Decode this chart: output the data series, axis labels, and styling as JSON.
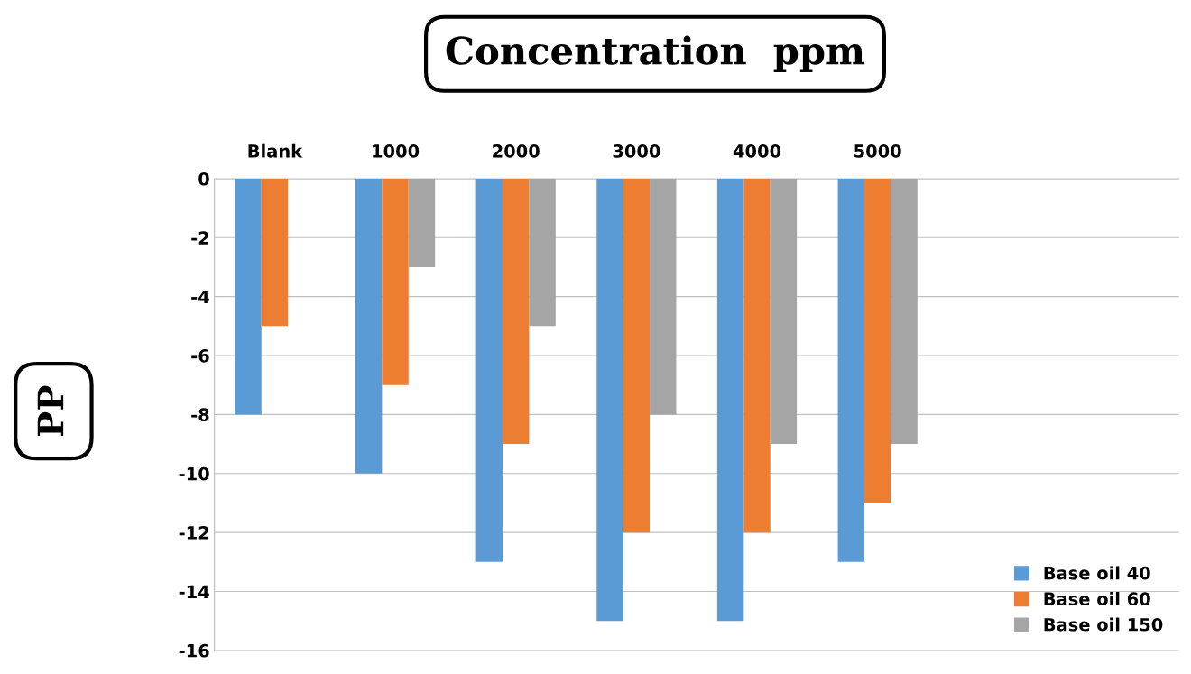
{
  "chart_data": {
    "type": "bar",
    "title": "Concentration  ppm",
    "ylabel": "PP",
    "categories": [
      "Blank",
      "1000",
      "2000",
      "3000",
      "4000",
      "5000",
      null,
      null
    ],
    "series": [
      {
        "name": "Base oil 40",
        "color": "#5b9bd5",
        "values": [
          -8,
          -10,
          -13,
          -15,
          -15,
          -13,
          null,
          null
        ]
      },
      {
        "name": "Base oil 60",
        "color": "#ed7d31",
        "values": [
          -5,
          -7,
          -9,
          -12,
          -12,
          -11,
          null,
          null
        ]
      },
      {
        "name": "Base oil 150",
        "color": "#a5a5a5",
        "values": [
          null,
          -3,
          -5,
          -8,
          -9,
          -9,
          null,
          null
        ]
      }
    ],
    "ylim": [
      -16,
      0
    ],
    "yticks": [
      -16,
      -14,
      -12,
      -10,
      -8,
      -6,
      -4,
      -2,
      0
    ],
    "grid": "y",
    "legend": "bottom right"
  }
}
